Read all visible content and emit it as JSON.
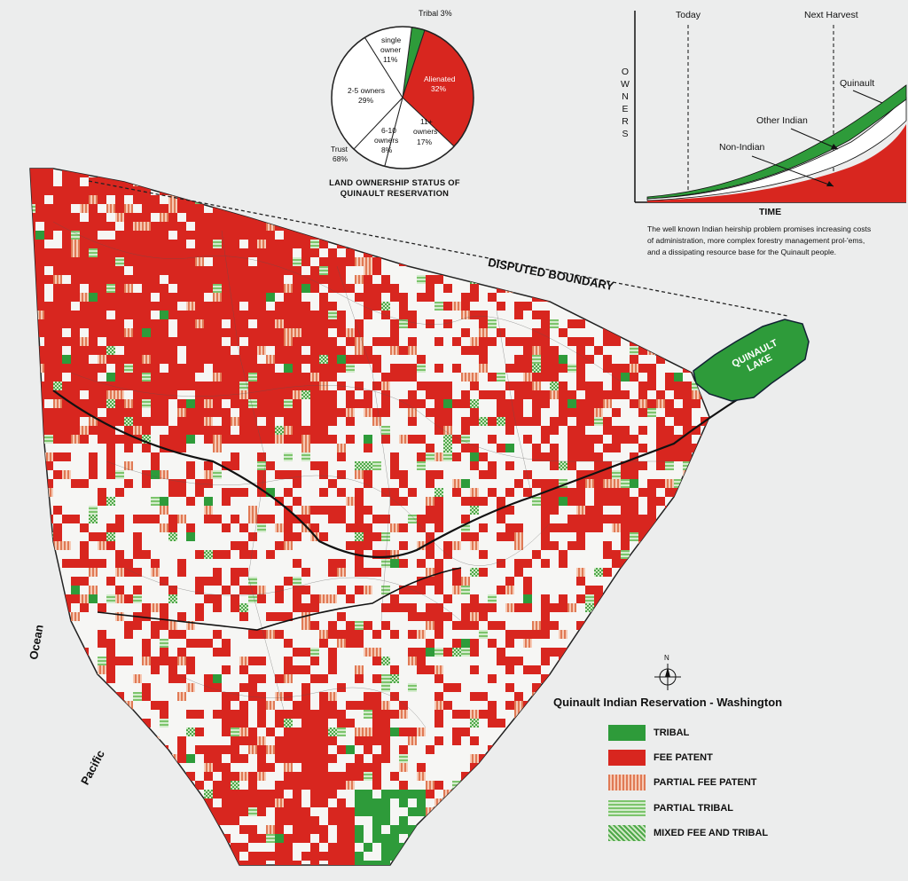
{
  "pie": {
    "caption_line1": "LAND OWNERSHIP STATUS OF",
    "caption_line2": "QUINAULT RESERVATION",
    "trust_label": "Trust",
    "trust_pct": "68%",
    "slices": [
      {
        "label": "Tribal",
        "pct": "3%",
        "value": 3,
        "color": "#2e9b3a"
      },
      {
        "label": "Alienated",
        "pct": "32%",
        "value": 32,
        "color": "#d8261f"
      },
      {
        "label": "11+ owners",
        "pct": "17%",
        "value": 17,
        "color": "#ffffff"
      },
      {
        "label": "6-10 owners",
        "pct": "8%",
        "value": 8,
        "color": "#ffffff"
      },
      {
        "label": "2-5 owners",
        "pct": "29%",
        "value": 29,
        "color": "#ffffff"
      },
      {
        "label": "single owner",
        "pct": "11%",
        "value": 11,
        "color": "#ffffff"
      }
    ],
    "text": {
      "tribal": "Tribal 3%",
      "alienated": "Alienated",
      "alienated_pct": "32%",
      "eleven_a": "11+",
      "eleven_b": "owners",
      "eleven_c": "17%",
      "six_a": "6-10",
      "six_b": "owners",
      "six_c": "8%",
      "two_a": "2-5 owners",
      "two_b": "29%",
      "single_a": "single",
      "single_b": "owner",
      "single_c": "11%"
    }
  },
  "owners_chart": {
    "y_label": "OWNERS",
    "x_label": "TIME",
    "today": "Today",
    "next_harvest": "Next Harvest",
    "quinault": "Quinault",
    "other_indian": "Other Indian",
    "non_indian": "Non-Indian",
    "caption_line1": "The well known Indian heirship problem promises increasing costs",
    "caption_line2": "of administration, more complex forestry management prol-'ems,",
    "caption_line3": "and a dissipating resource base for the Quinault people."
  },
  "map": {
    "disputed_boundary": "DISPUTED BOUNDARY",
    "lake_line1": "QUINAULT",
    "lake_line2": "LAKE",
    "ocean": "Ocean",
    "pacific": "Pacific",
    "north": "N"
  },
  "legend": {
    "title": "Quinault Indian Reservation - Washington",
    "items": [
      {
        "label": "TRIBAL",
        "color": "#2e9b3a",
        "pattern": "solid"
      },
      {
        "label": "FEE PATENT",
        "color": "#d8261f",
        "pattern": "solid"
      },
      {
        "label": "PARTIAL FEE PATENT",
        "color": "#e58a6a",
        "pattern": "stripes"
      },
      {
        "label": "PARTIAL TRIBAL",
        "color": "#8ccc7e",
        "pattern": "stripes"
      },
      {
        "label": "MIXED FEE AND TRIBAL",
        "color": "#6fbf5f",
        "pattern": "hatch"
      }
    ]
  },
  "colors": {
    "tribal": "#2e9b3a",
    "fee_patent": "#d8261f",
    "partial_fee": "#e58a6a",
    "partial_tribal": "#8ccc7e",
    "land": "#f4f4f2"
  }
}
